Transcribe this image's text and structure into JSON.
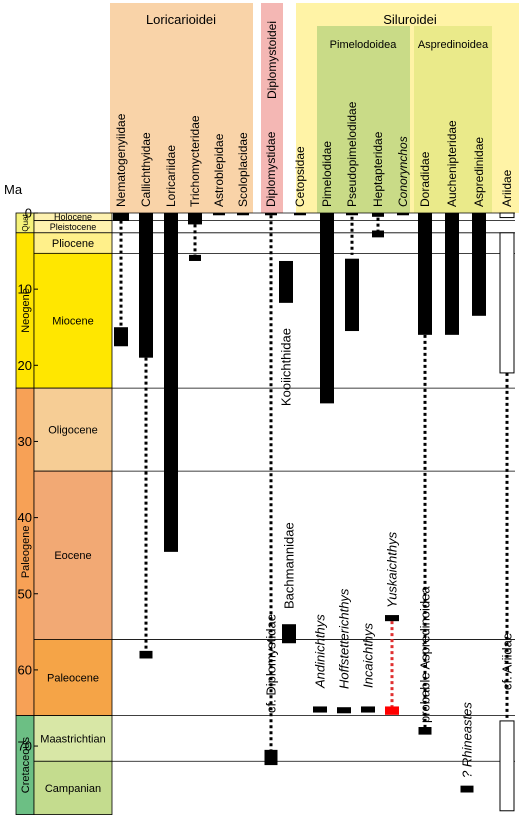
{
  "chart_data": {
    "type": "stratigraphic-range",
    "y_label": "Ma",
    "y_ticks": [
      0,
      10,
      20,
      30,
      40,
      50,
      60,
      70
    ],
    "y_range": [
      0,
      79
    ],
    "groups": [
      {
        "label": "Loricarioidei",
        "color": "#f9d3a8"
      },
      {
        "label": "Diplomystoidei",
        "color": "#f4b7b4"
      },
      {
        "label": "Siluroidei",
        "color": "#fff3a6"
      },
      {
        "label": "Pimelodoidea",
        "color": "#c9db87"
      },
      {
        "label": "Aspredinoidea",
        "color": "#eaea8a"
      }
    ],
    "periods": [
      {
        "label": "Quat",
        "color": "#f5f27a",
        "start": 0,
        "end": 2.6
      },
      {
        "label": "Neogene",
        "color": "#ffe500",
        "start": 2.6,
        "end": 23
      },
      {
        "label": "Paleogene",
        "color": "#f7a156",
        "start": 23,
        "end": 66
      },
      {
        "label": "Cretaceous",
        "color": "#6cbf84",
        "start": 66,
        "end": 79
      }
    ],
    "epochs": [
      {
        "label": "Holocene",
        "color": "#fdf1b0",
        "start": 0,
        "end": 1
      },
      {
        "label": "Pleistocene",
        "color": "#fff2ae",
        "start": 1,
        "end": 2.6
      },
      {
        "label": "Pliocene",
        "color": "#fff08a",
        "start": 2.6,
        "end": 5.3
      },
      {
        "label": "Miocene",
        "color": "#ffe700",
        "start": 5.3,
        "end": 23
      },
      {
        "label": "Oligocene",
        "color": "#f6cd95",
        "start": 23,
        "end": 33.9
      },
      {
        "label": "Eocene",
        "color": "#f2a974",
        "start": 33.9,
        "end": 56
      },
      {
        "label": "Paleocene",
        "color": "#f5a447",
        "start": 56,
        "end": 66
      },
      {
        "label": "Maastrichtian",
        "color": "#d8e7a6",
        "start": 66,
        "end": 72
      },
      {
        "label": "Campanian",
        "color": "#c4dc8e",
        "start": 72,
        "end": 79
      }
    ],
    "taxa": [
      {
        "label": "Nematogenyiidae",
        "italic": false
      },
      {
        "label": "Callichthyidae",
        "italic": false
      },
      {
        "label": "Loricariidae",
        "italic": false
      },
      {
        "label": "Trichomycteridae",
        "italic": false
      },
      {
        "label": "Astroblepidae",
        "italic": false
      },
      {
        "label": "Scoloplacidae",
        "italic": false
      },
      {
        "label": "Diplomystidae",
        "italic": false
      },
      {
        "label": "Cetopsidae",
        "italic": false
      },
      {
        "label": "Pimelodidae",
        "italic": false
      },
      {
        "label": "Pseudopimelodidae",
        "italic": false
      },
      {
        "label": "Heptapteridae",
        "italic": false
      },
      {
        "label": "Conorynchos",
        "italic": true
      },
      {
        "label": "Doradidae",
        "italic": false
      },
      {
        "label": "Auchenipteridae",
        "italic": false
      },
      {
        "label": "Aspredinidae",
        "italic": false
      },
      {
        "label": "Ariidae",
        "italic": false
      }
    ],
    "ranges": [
      {
        "start": 0,
        "end": 1
      },
      {
        "start": 15,
        "end": 17.5
      },
      {
        "start": 0,
        "end": 19
      },
      {
        "start": 57.5,
        "end": 58.5
      },
      {
        "start": 0,
        "end": 44.5
      },
      {
        "start": 0,
        "end": 1.5
      },
      {
        "start": 5.5,
        "end": 6.3
      },
      {
        "start": 0,
        "end": 0.3
      },
      {
        "start": 0,
        "end": 0.3
      },
      {
        "start": 0,
        "end": 0.3
      },
      {
        "start": 70.5,
        "end": 72.5
      },
      {
        "start": 0,
        "end": 0.3
      },
      {
        "start": 0,
        "end": 25
      },
      {
        "start": 0,
        "end": 0.3
      },
      {
        "start": 6,
        "end": 15.5
      },
      {
        "start": 0,
        "end": 0.5
      },
      {
        "start": 2.3,
        "end": 3.2
      },
      {
        "start": 0,
        "end": 0.3
      },
      {
        "start": 0,
        "end": 16
      },
      {
        "start": 0,
        "end": 16
      },
      {
        "start": 0,
        "end": 13.5
      },
      {
        "start": 0,
        "end": 0.6,
        "hollow": true
      },
      {
        "start": 2.6,
        "end": 21,
        "hollow": true
      },
      {
        "start": 66.7,
        "end": 78.5,
        "hollow": true
      },
      {
        "start": 6.3,
        "end": 11.8
      },
      {
        "start": 54,
        "end": 56.5
      },
      {
        "start": 64.8,
        "end": 65.6
      },
      {
        "start": 64.9,
        "end": 65.7
      },
      {
        "start": 64.8,
        "end": 65.6
      },
      {
        "start": 52.8,
        "end": 53.6
      },
      {
        "start": 64.8,
        "end": 65.9,
        "color": "#ff0000"
      },
      {
        "start": 67.5,
        "end": 68.5
      },
      {
        "start": 75.2,
        "end": 76.1
      }
    ],
    "ghost_lineages": [
      {
        "start": 1,
        "end": 15
      },
      {
        "start": 19,
        "end": 57.5
      },
      {
        "start": 1.5,
        "end": 5.5
      },
      {
        "start": 0.3,
        "end": 70.5
      },
      {
        "start": 0.5,
        "end": 5.5
      },
      {
        "start": 0.6,
        "end": 2.3
      },
      {
        "start": 16,
        "end": 67.5
      },
      {
        "start": 21,
        "end": 66.7
      },
      {
        "start": 53.6,
        "end": 64.8,
        "color": "#e03030"
      }
    ],
    "fossil_taxa": [
      {
        "label": "Kooiichthidae",
        "italic": false
      },
      {
        "label": "cf. Diplomystidae",
        "italic": false
      },
      {
        "label": "Bachmannidae",
        "italic": false
      },
      {
        "label": "Andinichthys",
        "italic": true
      },
      {
        "label": "Hoffstetterichthys",
        "italic": true
      },
      {
        "label": "Incaichthys",
        "italic": true
      },
      {
        "label": "Yuskaichthys",
        "italic": true
      },
      {
        "label": "probable Aspredinoidea",
        "italic": false
      },
      {
        "label": "? Rhineastes",
        "italic": true
      },
      {
        "label": "cf. Ariidae",
        "italic": false
      }
    ]
  }
}
